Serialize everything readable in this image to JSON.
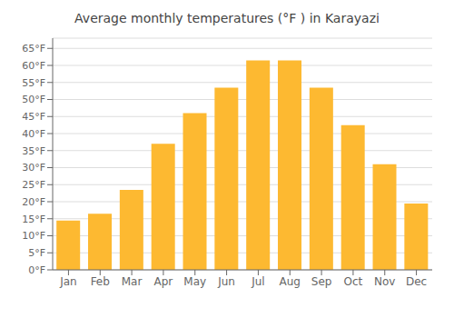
{
  "chart_data": {
    "type": "bar",
    "title": "Average monthly temperatures (°F ) in Karayazı̇",
    "categories": [
      "Jan",
      "Feb",
      "Mar",
      "Apr",
      "May",
      "Jun",
      "Jul",
      "Aug",
      "Sep",
      "Oct",
      "Nov",
      "Dec"
    ],
    "values": [
      14.5,
      16.5,
      23.5,
      37.0,
      46.0,
      53.5,
      61.5,
      61.5,
      53.5,
      42.5,
      31.0,
      19.5
    ],
    "color": "#FDB931",
    "ylim": [
      0,
      68
    ],
    "yticks": [
      {
        "value": 0,
        "label": "0°F"
      },
      {
        "value": 5,
        "label": "5°F"
      },
      {
        "value": 10,
        "label": "10°F"
      },
      {
        "value": 15,
        "label": "15°F"
      },
      {
        "value": 20,
        "label": "20°F"
      },
      {
        "value": 25,
        "label": "25°F"
      },
      {
        "value": 30,
        "label": "30°F"
      },
      {
        "value": 35,
        "label": "35°F"
      },
      {
        "value": 40,
        "label": "40°F"
      },
      {
        "value": 45,
        "label": "45°F"
      },
      {
        "value": 50,
        "label": "50°F"
      },
      {
        "value": 55,
        "label": "55°F"
      },
      {
        "value": 60,
        "label": "60°F"
      },
      {
        "value": 65,
        "label": "65°F"
      }
    ],
    "grid": true
  }
}
